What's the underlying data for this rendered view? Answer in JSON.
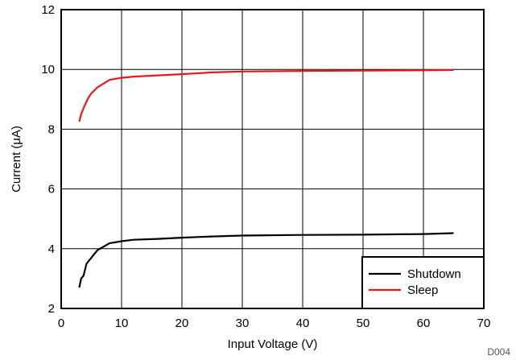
{
  "chart_data": {
    "type": "line",
    "xlabel": "Input Voltage (V)",
    "ylabel": "Current (μA)",
    "xlim": [
      0,
      70
    ],
    "ylim": [
      2,
      12
    ],
    "xticks": [
      0,
      10,
      20,
      30,
      40,
      50,
      60,
      70
    ],
    "yticks": [
      2,
      4,
      6,
      8,
      10,
      12
    ],
    "grid": true,
    "legend_position": "bottom-right",
    "figure_code": "D004",
    "series": [
      {
        "name": "Shutdown",
        "color": "#000000",
        "x": [
          3.0,
          3.3,
          3.7,
          4.2,
          5.0,
          6.0,
          8.0,
          10.0,
          12.0,
          16.0,
          20.0,
          25.0,
          30.0,
          40.0,
          50.0,
          60.0,
          65.0
        ],
        "y": [
          2.7,
          3.0,
          3.1,
          3.5,
          3.7,
          3.95,
          4.18,
          4.25,
          4.3,
          4.33,
          4.37,
          4.41,
          4.44,
          4.46,
          4.47,
          4.49,
          4.52
        ]
      },
      {
        "name": "Sleep",
        "color": "#e8171f",
        "x": [
          3.0,
          3.3,
          3.8,
          4.5,
          5.0,
          6.0,
          8.0,
          10.0,
          12.0,
          16.0,
          20.0,
          25.0,
          30.0,
          40.0,
          50.0,
          60.0,
          65.0
        ],
        "y": [
          8.25,
          8.5,
          8.75,
          9.05,
          9.2,
          9.4,
          9.65,
          9.72,
          9.76,
          9.8,
          9.84,
          9.9,
          9.93,
          9.95,
          9.96,
          9.97,
          9.98
        ]
      }
    ]
  }
}
